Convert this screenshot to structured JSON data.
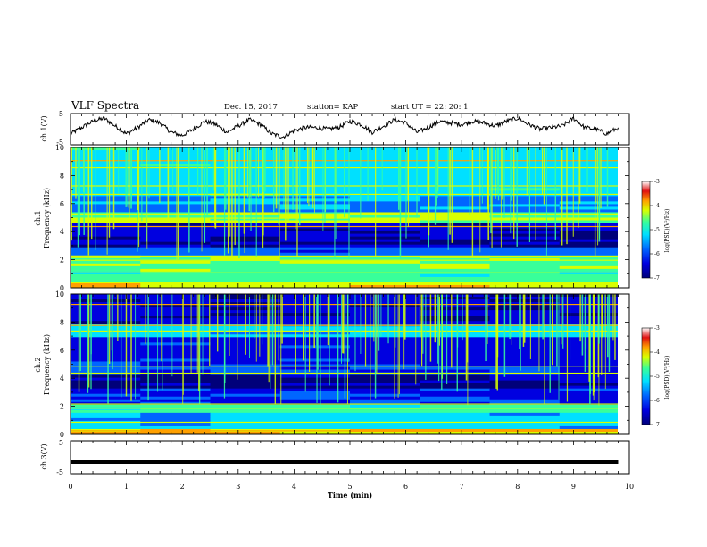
{
  "header": {
    "title": "VLF Spectra",
    "date": "Dec. 15, 2017",
    "station": "station= KAP",
    "start": "start  UT  =    22: 20: 1"
  },
  "colors": {
    "waveform": "#000000",
    "cmap": [
      "#00007a",
      "#0000e0",
      "#0066ff",
      "#00e0ff",
      "#38ff9a",
      "#d8ff00",
      "#ffa000",
      "#e01010",
      "#ffffff"
    ]
  },
  "chart_data": [
    {
      "type": "line",
      "panel": "ch1-waveform",
      "ylabel": "ch.1(V)",
      "ylim": [
        -5,
        5
      ],
      "yticks": [
        "5",
        "-5"
      ],
      "xlim": [
        0,
        10
      ],
      "description_series": "ch.1 voltage vs time",
      "x": [
        0,
        0.2,
        0.4,
        0.6,
        0.8,
        1.0,
        1.2,
        1.4,
        1.6,
        1.8,
        2.0,
        2.2,
        2.4,
        2.6,
        2.8,
        3.0,
        3.2,
        3.4,
        3.6,
        3.8,
        4.0,
        4.2,
        4.4,
        4.6,
        4.8,
        5.0,
        5.2,
        5.4,
        5.6,
        5.8,
        6.0,
        6.2,
        6.4,
        6.6,
        6.8,
        7.0,
        7.2,
        7.4,
        7.6,
        7.8,
        8.0,
        8.2,
        8.4,
        8.6,
        8.8,
        9.0,
        9.2,
        9.4,
        9.6,
        9.8
      ],
      "y": [
        -1.5,
        0.5,
        2.5,
        3.5,
        1.0,
        -1.5,
        0.5,
        3.0,
        2.0,
        -1.0,
        -2.0,
        0.0,
        2.5,
        1.5,
        -1.0,
        1.0,
        3.0,
        1.5,
        -1.5,
        -2.5,
        -0.5,
        0.5,
        0.5,
        0.0,
        0.5,
        2.5,
        1.5,
        -1.0,
        1.0,
        3.0,
        2.0,
        -1.0,
        0.5,
        2.5,
        2.0,
        1.5,
        2.5,
        2.0,
        1.0,
        2.5,
        3.5,
        1.5,
        0.0,
        0.5,
        1.0,
        3.5,
        0.5,
        0.0,
        -1.5,
        0.5
      ]
    },
    {
      "type": "heatmap",
      "panel": "ch1-spectrogram",
      "ylabel": "ch.1\nFrequency (kHz)",
      "ylim": [
        0,
        10
      ],
      "yticks": [
        "0",
        "2",
        "4",
        "6",
        "8",
        "10"
      ],
      "xlim": [
        0,
        10
      ],
      "value": "log(PSD)",
      "colorbar": {
        "min": -7,
        "max": -3,
        "ticks": [
          "-3",
          "-4",
          "-5",
          "-6",
          "-7"
        ],
        "label": "log(PSD)(V²/Hz)"
      }
    },
    {
      "type": "heatmap",
      "panel": "ch2-spectrogram",
      "ylabel": "ch.2\nFrequency (kHz)",
      "ylim": [
        0,
        10
      ],
      "yticks": [
        "0",
        "2",
        "4",
        "6",
        "8",
        "10"
      ],
      "xlim": [
        0,
        10
      ],
      "value": "log(PSD)",
      "colorbar": {
        "min": -7,
        "max": -3,
        "ticks": [
          "-3",
          "-4",
          "-5",
          "-6",
          "-7"
        ],
        "label": "log(PSD)(V²/Hz)"
      }
    },
    {
      "type": "line",
      "panel": "ch3-waveform",
      "ylabel": "ch.3(V)",
      "ylim": [
        -5,
        5
      ],
      "yticks": [
        "5",
        "-5"
      ],
      "xlim": [
        0,
        10
      ],
      "x": [
        0,
        9.8
      ],
      "y": [
        -1.5,
        -1.5
      ]
    }
  ],
  "xaxis": {
    "label": "Time  (min)",
    "ticks": [
      "0",
      "1",
      "2",
      "3",
      "4",
      "5",
      "6",
      "7",
      "8",
      "9",
      "10"
    ]
  }
}
